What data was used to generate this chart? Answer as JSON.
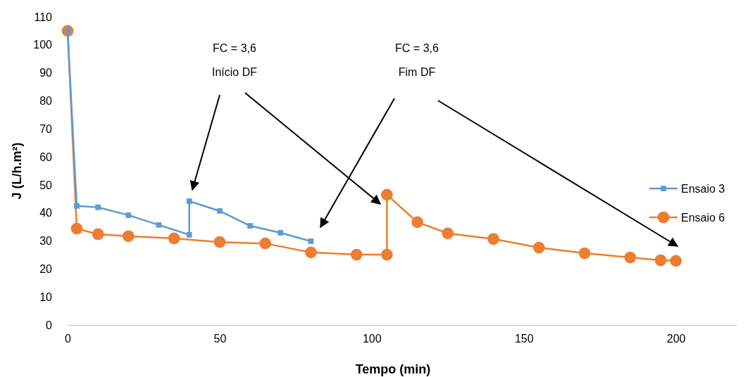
{
  "chart_data": {
    "type": "line",
    "xlabel": "Tempo (min)",
    "ylabel": "J (L/h.m²)",
    "xlim": [
      0,
      220
    ],
    "xticks": [
      0,
      50,
      100,
      150,
      200
    ],
    "ylim": [
      0,
      110
    ],
    "yticks": [
      0,
      10,
      20,
      30,
      40,
      50,
      60,
      70,
      80,
      90,
      100,
      110
    ],
    "grid": false,
    "legend": "right",
    "line_style": "solid",
    "series": [
      {
        "name": "Ensaio 3",
        "color": "#5b9bd5",
        "marker": "square",
        "x": [
          0,
          3,
          10,
          20,
          30,
          40,
          40,
          50,
          60,
          70,
          80
        ],
        "values": [
          105,
          42.5,
          42,
          39.2,
          35.7,
          32.2,
          44.2,
          40.7,
          35.4,
          32.9,
          29.9
        ]
      },
      {
        "name": "Ensaio 6",
        "color": "#ed7d31",
        "marker": "circle",
        "x": [
          0,
          3,
          10,
          20,
          35,
          50,
          65,
          80,
          95,
          105,
          105,
          115,
          125,
          140,
          155,
          170,
          185,
          195,
          200
        ],
        "values": [
          105,
          34.4,
          32.4,
          31.7,
          30.9,
          29.6,
          29.1,
          25.9,
          25.1,
          25.1,
          46.5,
          36.7,
          32.7,
          30.7,
          27.6,
          25.6,
          24.1,
          23.1,
          22.9
        ]
      }
    ],
    "annotations": [
      "FC = 3,6\nInício DF",
      "FC = 3,6\nFim DF"
    ]
  }
}
